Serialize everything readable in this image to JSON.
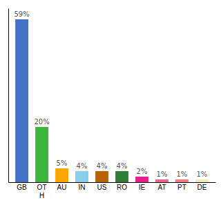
{
  "chart_data": {
    "type": "bar",
    "categories": [
      "GB",
      "OT\nH",
      "AU",
      "IN",
      "US",
      "RO",
      "IE",
      "AT",
      "PT",
      "DE"
    ],
    "values": [
      59,
      20,
      5,
      4,
      4,
      4,
      2,
      1,
      1,
      1
    ],
    "value_labels": [
      "59%",
      "20%",
      "5%",
      "4%",
      "4%",
      "4%",
      "2%",
      "1%",
      "1%",
      "1%"
    ],
    "colors": [
      "#4472C4",
      "#3CB53C",
      "#FFA500",
      "#87CEEB",
      "#B8620A",
      "#2E7D32",
      "#E91E8C",
      "#F06292",
      "#E88080",
      "#F0EDB0"
    ],
    "ylim": [
      0,
      63
    ],
    "yticks": [],
    "data_labels": true,
    "grid": false,
    "tick_labels": "x"
  }
}
